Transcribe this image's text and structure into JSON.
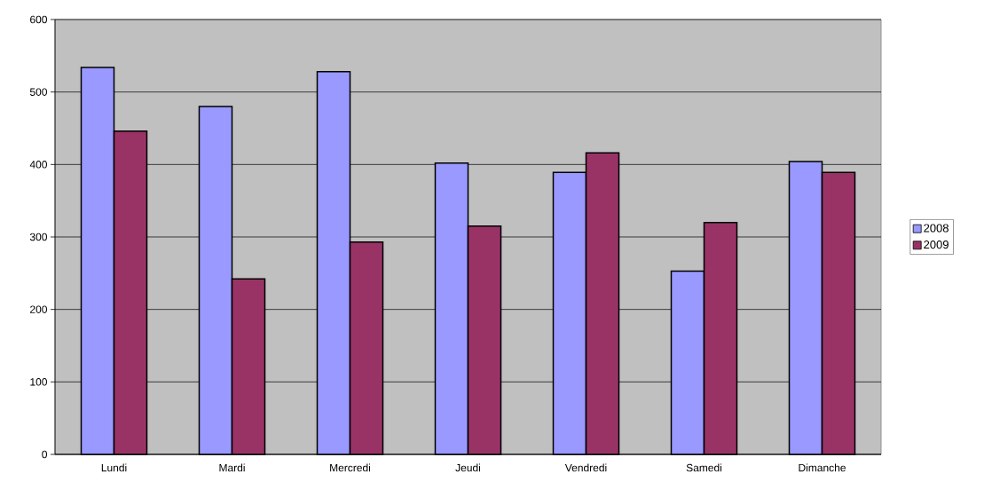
{
  "chart_data": {
    "type": "bar",
    "categories": [
      "Lundi",
      "Mardi",
      "Mercredi",
      "Jeudi",
      "Vendredi",
      "Samedi",
      "Dimanche"
    ],
    "series": [
      {
        "name": "2008",
        "color": "#9999ff",
        "values": [
          534,
          480,
          528,
          402,
          389,
          253,
          404
        ]
      },
      {
        "name": "2009",
        "color": "#993366",
        "values": [
          446,
          242,
          293,
          315,
          416,
          320,
          389
        ]
      }
    ],
    "ylim": [
      0,
      600
    ],
    "yticks": [
      0,
      100,
      200,
      300,
      400,
      500,
      600
    ],
    "grid": "y",
    "legend": "right"
  }
}
